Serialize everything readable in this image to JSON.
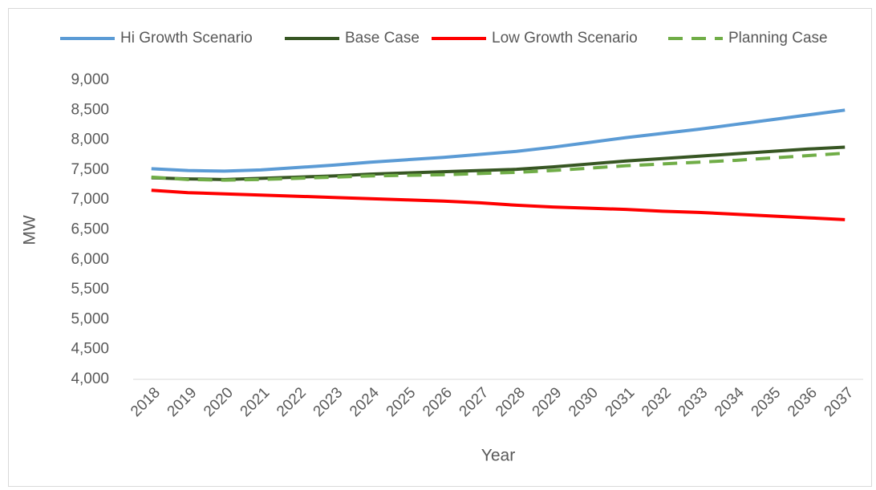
{
  "chart_data": {
    "type": "line",
    "x_label": "Year",
    "y_label": "MW",
    "categories": [
      "2018",
      "2019",
      "2020",
      "2021",
      "2022",
      "2023",
      "2024",
      "2025",
      "2026",
      "2027",
      "2028",
      "2029",
      "2030",
      "2031",
      "2032",
      "2033",
      "2034",
      "2035",
      "2036",
      "2037"
    ],
    "series": [
      {
        "name": "Hi Growth Scenario",
        "color": "#5b9bd5",
        "dashed": false,
        "values": [
          7520,
          7490,
          7480,
          7500,
          7540,
          7580,
          7630,
          7670,
          7710,
          7760,
          7810,
          7880,
          7960,
          8040,
          8110,
          8180,
          8260,
          8340,
          8420,
          8500
        ]
      },
      {
        "name": "Base Case",
        "color": "#375623",
        "dashed": false,
        "values": [
          7370,
          7350,
          7340,
          7360,
          7380,
          7400,
          7430,
          7450,
          7470,
          7490,
          7510,
          7550,
          7600,
          7650,
          7690,
          7730,
          7770,
          7810,
          7850,
          7880
        ]
      },
      {
        "name": "Low Growth Scenario",
        "color": "#ff0000",
        "dashed": false,
        "values": [
          7160,
          7120,
          7100,
          7080,
          7060,
          7040,
          7020,
          7000,
          6980,
          6950,
          6910,
          6880,
          6860,
          6840,
          6810,
          6790,
          6760,
          6730,
          6700,
          6670
        ]
      },
      {
        "name": "Planning Case",
        "color": "#70ad47",
        "dashed": true,
        "values": [
          7380,
          7340,
          7330,
          7340,
          7360,
          7380,
          7400,
          7410,
          7420,
          7440,
          7460,
          7490,
          7530,
          7570,
          7600,
          7630,
          7660,
          7700,
          7740,
          7780
        ]
      }
    ],
    "ylim": [
      4000,
      9000
    ],
    "yticks": [
      {
        "value": 4000,
        "label": "4,000"
      },
      {
        "value": 4500,
        "label": "4,500"
      },
      {
        "value": 5000,
        "label": "5,000"
      },
      {
        "value": 5500,
        "label": "5,500"
      },
      {
        "value": 6000,
        "label": "6,000"
      },
      {
        "value": 6500,
        "label": "6,500"
      },
      {
        "value": 7000,
        "label": "7,000"
      },
      {
        "value": 7500,
        "label": "7,500"
      },
      {
        "value": 8000,
        "label": "8,000"
      },
      {
        "value": 8500,
        "label": "8,500"
      },
      {
        "value": 9000,
        "label": "9,000"
      }
    ],
    "grid": false,
    "legend": "top"
  }
}
